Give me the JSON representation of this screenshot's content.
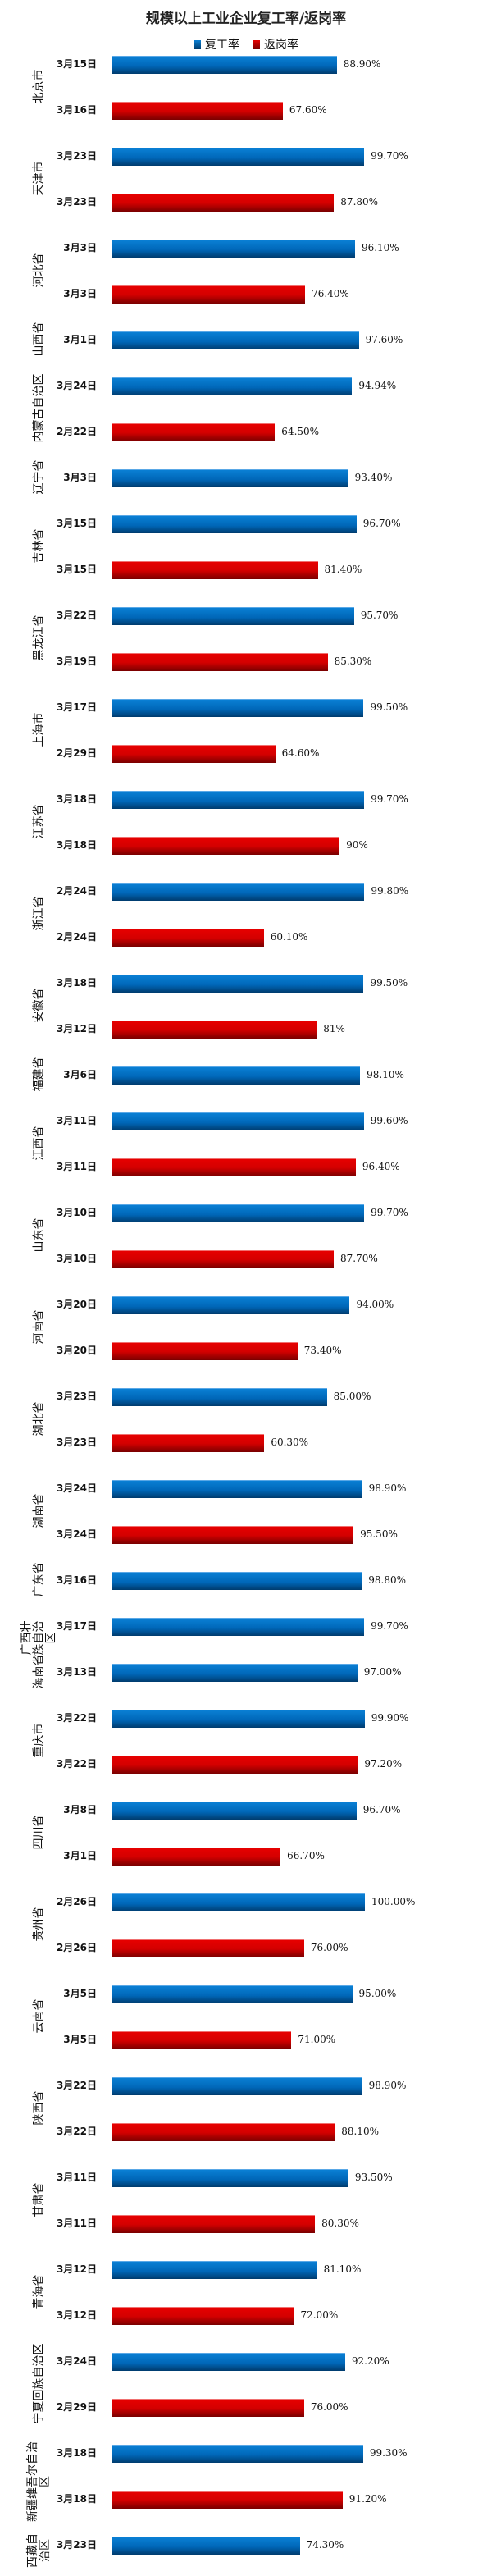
{
  "chart_data": {
    "type": "bar",
    "orientation": "horizontal",
    "title": "规模以上工业企业复工率/返岗率",
    "legend": [
      {
        "name": "复工率",
        "color": "#0067b8"
      },
      {
        "name": "返岗率",
        "color": "#d40000"
      }
    ],
    "legend_position": "top",
    "xlim": [
      0,
      100
    ],
    "grid": false,
    "groups": [
      {
        "category": "北京市",
        "bars": [
          {
            "series": "复工率",
            "date": "3月15日",
            "value": 88.9,
            "label": "88.90%"
          },
          {
            "series": "返岗率",
            "date": "3月16日",
            "value": 67.6,
            "label": "67.60%"
          }
        ]
      },
      {
        "category": "天津市",
        "bars": [
          {
            "series": "复工率",
            "date": "3月23日",
            "value": 99.7,
            "label": "99.70%"
          },
          {
            "series": "返岗率",
            "date": "3月23日",
            "value": 87.8,
            "label": "87.80%"
          }
        ]
      },
      {
        "category": "河北省",
        "bars": [
          {
            "series": "复工率",
            "date": "3月3日",
            "value": 96.1,
            "label": "96.10%"
          },
          {
            "series": "返岗率",
            "date": "3月3日",
            "value": 76.4,
            "label": "76.40%"
          }
        ]
      },
      {
        "category": "山西省",
        "bars": [
          {
            "series": "复工率",
            "date": "3月1日",
            "value": 97.6,
            "label": "97.60%"
          }
        ]
      },
      {
        "category": "内蒙古自治区",
        "bars": [
          {
            "series": "复工率",
            "date": "3月24日",
            "value": 94.94,
            "label": "94.94%"
          },
          {
            "series": "返岗率",
            "date": "2月22日",
            "value": 64.5,
            "label": "64.50%"
          }
        ]
      },
      {
        "category": "辽宁省",
        "bars": [
          {
            "series": "复工率",
            "date": "3月3日",
            "value": 93.4,
            "label": "93.40%"
          }
        ]
      },
      {
        "category": "吉林省",
        "bars": [
          {
            "series": "复工率",
            "date": "3月15日",
            "value": 96.7,
            "label": "96.70%"
          },
          {
            "series": "返岗率",
            "date": "3月15日",
            "value": 81.4,
            "label": "81.40%"
          }
        ]
      },
      {
        "category": "黑龙江省",
        "bars": [
          {
            "series": "复工率",
            "date": "3月22日",
            "value": 95.7,
            "label": "95.70%"
          },
          {
            "series": "返岗率",
            "date": "3月19日",
            "value": 85.3,
            "label": "85.30%"
          }
        ]
      },
      {
        "category": "上海市",
        "bars": [
          {
            "series": "复工率",
            "date": "3月17日",
            "value": 99.5,
            "label": "99.50%"
          },
          {
            "series": "返岗率",
            "date": "2月29日",
            "value": 64.6,
            "label": "64.60%"
          }
        ]
      },
      {
        "category": "江苏省",
        "bars": [
          {
            "series": "复工率",
            "date": "3月18日",
            "value": 99.7,
            "label": "99.70%"
          },
          {
            "series": "返岗率",
            "date": "3月18日",
            "value": 90,
            "label": "90%"
          }
        ]
      },
      {
        "category": "浙江省",
        "bars": [
          {
            "series": "复工率",
            "date": "2月24日",
            "value": 99.8,
            "label": "99.80%"
          },
          {
            "series": "返岗率",
            "date": "2月24日",
            "value": 60.1,
            "label": "60.10%"
          }
        ]
      },
      {
        "category": "安徽省",
        "bars": [
          {
            "series": "复工率",
            "date": "3月18日",
            "value": 99.5,
            "label": "99.50%"
          },
          {
            "series": "返岗率",
            "date": "3月12日",
            "value": 81,
            "label": "81%"
          }
        ]
      },
      {
        "category": "福建省",
        "bars": [
          {
            "series": "复工率",
            "date": "3月6日",
            "value": 98.1,
            "label": "98.10%"
          }
        ]
      },
      {
        "category": "江西省",
        "bars": [
          {
            "series": "复工率",
            "date": "3月11日",
            "value": 99.6,
            "label": "99.60%"
          },
          {
            "series": "返岗率",
            "date": "3月11日",
            "value": 96.4,
            "label": "96.40%"
          }
        ]
      },
      {
        "category": "山东省",
        "bars": [
          {
            "series": "复工率",
            "date": "3月10日",
            "value": 99.7,
            "label": "99.70%"
          },
          {
            "series": "返岗率",
            "date": "3月10日",
            "value": 87.7,
            "label": "87.70%"
          }
        ]
      },
      {
        "category": "河南省",
        "bars": [
          {
            "series": "复工率",
            "date": "3月20日",
            "value": 94.0,
            "label": "94.00%"
          },
          {
            "series": "返岗率",
            "date": "3月20日",
            "value": 73.4,
            "label": "73.40%"
          }
        ]
      },
      {
        "category": "湖北省",
        "bars": [
          {
            "series": "复工率",
            "date": "3月23日",
            "value": 85.0,
            "label": "85.00%"
          },
          {
            "series": "返岗率",
            "date": "3月23日",
            "value": 60.3,
            "label": "60.30%"
          }
        ]
      },
      {
        "category": "湖南省",
        "bars": [
          {
            "series": "复工率",
            "date": "3月24日",
            "value": 98.9,
            "label": "98.90%"
          },
          {
            "series": "返岗率",
            "date": "3月24日",
            "value": 95.5,
            "label": "95.50%"
          }
        ]
      },
      {
        "category": "广东省",
        "bars": [
          {
            "series": "复工率",
            "date": "3月16日",
            "value": 98.8,
            "label": "98.80%"
          }
        ]
      },
      {
        "category": "广西壮族自治区",
        "bars": [
          {
            "series": "复工率",
            "date": "3月17日",
            "value": 99.7,
            "label": "99.70%"
          }
        ]
      },
      {
        "category": "海南省",
        "bars": [
          {
            "series": "复工率",
            "date": "3月13日",
            "value": 97.0,
            "label": "97.00%"
          }
        ]
      },
      {
        "category": "重庆市",
        "bars": [
          {
            "series": "复工率",
            "date": "3月22日",
            "value": 99.9,
            "label": "99.90%"
          },
          {
            "series": "返岗率",
            "date": "3月22日",
            "value": 97.2,
            "label": "97.20%"
          }
        ]
      },
      {
        "category": "四川省",
        "bars": [
          {
            "series": "复工率",
            "date": "3月8日",
            "value": 96.7,
            "label": "96.70%"
          },
          {
            "series": "返岗率",
            "date": "3月1日",
            "value": 66.7,
            "label": "66.70%"
          }
        ]
      },
      {
        "category": "贵州省",
        "bars": [
          {
            "series": "复工率",
            "date": "2月26日",
            "value": 100.0,
            "label": "100.00%"
          },
          {
            "series": "返岗率",
            "date": "2月26日",
            "value": 76.0,
            "label": "76.00%"
          }
        ]
      },
      {
        "category": "云南省",
        "bars": [
          {
            "series": "复工率",
            "date": "3月5日",
            "value": 95.0,
            "label": "95.00%"
          },
          {
            "series": "返岗率",
            "date": "3月5日",
            "value": 71.0,
            "label": "71.00%"
          }
        ]
      },
      {
        "category": "陕西省",
        "bars": [
          {
            "series": "复工率",
            "date": "3月22日",
            "value": 98.9,
            "label": "98.90%"
          },
          {
            "series": "返岗率",
            "date": "3月22日",
            "value": 88.1,
            "label": "88.10%"
          }
        ]
      },
      {
        "category": "甘肃省",
        "bars": [
          {
            "series": "复工率",
            "date": "3月11日",
            "value": 93.5,
            "label": "93.50%"
          },
          {
            "series": "返岗率",
            "date": "3月11日",
            "value": 80.3,
            "label": "80.30%"
          }
        ]
      },
      {
        "category": "青海省",
        "bars": [
          {
            "series": "复工率",
            "date": "3月12日",
            "value": 81.1,
            "label": "81.10%"
          },
          {
            "series": "返岗率",
            "date": "3月12日",
            "value": 72.0,
            "label": "72.00%"
          }
        ]
      },
      {
        "category": "宁夏回族自治区",
        "bars": [
          {
            "series": "复工率",
            "date": "3月24日",
            "value": 92.2,
            "label": "92.20%"
          },
          {
            "series": "返岗率",
            "date": "2月29日",
            "value": 76.0,
            "label": "76.00%"
          }
        ]
      },
      {
        "category": "新疆维吾尔自治区",
        "bars": [
          {
            "series": "复工率",
            "date": "3月18日",
            "value": 99.3,
            "label": "99.30%"
          },
          {
            "series": "返岗率",
            "date": "3月18日",
            "value": 91.2,
            "label": "91.20%"
          }
        ]
      },
      {
        "category": "西藏自治区",
        "bars": [
          {
            "series": "复工率",
            "date": "3月23日",
            "value": 74.3,
            "label": "74.30%"
          }
        ]
      }
    ]
  }
}
